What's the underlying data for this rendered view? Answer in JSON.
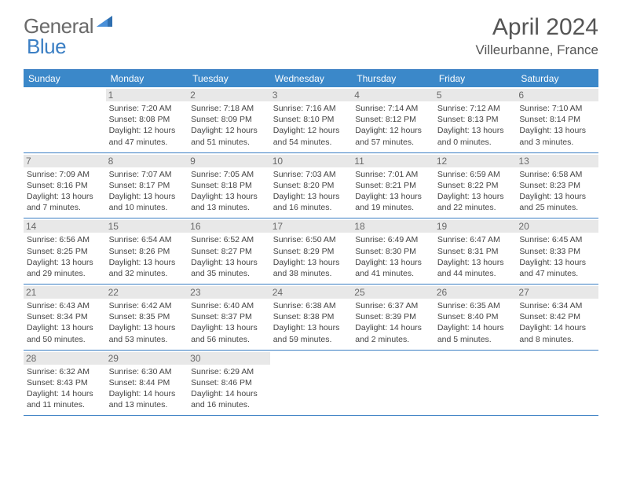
{
  "logo": {
    "part1": "General",
    "part2": "Blue"
  },
  "title": "April 2024",
  "location": "Villeurbanne, France",
  "colors": {
    "header_bg": "#3b88c9",
    "border": "#3b7fc4",
    "daynum_bg": "#e8e8e8",
    "text": "#444444",
    "logo_gray": "#6a6a6a",
    "logo_blue": "#3b7fc4"
  },
  "dow": [
    "Sunday",
    "Monday",
    "Tuesday",
    "Wednesday",
    "Thursday",
    "Friday",
    "Saturday"
  ],
  "weeks": [
    [
      {
        "n": "",
        "lines": []
      },
      {
        "n": "1",
        "lines": [
          "Sunrise: 7:20 AM",
          "Sunset: 8:08 PM",
          "Daylight: 12 hours",
          "and 47 minutes."
        ]
      },
      {
        "n": "2",
        "lines": [
          "Sunrise: 7:18 AM",
          "Sunset: 8:09 PM",
          "Daylight: 12 hours",
          "and 51 minutes."
        ]
      },
      {
        "n": "3",
        "lines": [
          "Sunrise: 7:16 AM",
          "Sunset: 8:10 PM",
          "Daylight: 12 hours",
          "and 54 minutes."
        ]
      },
      {
        "n": "4",
        "lines": [
          "Sunrise: 7:14 AM",
          "Sunset: 8:12 PM",
          "Daylight: 12 hours",
          "and 57 minutes."
        ]
      },
      {
        "n": "5",
        "lines": [
          "Sunrise: 7:12 AM",
          "Sunset: 8:13 PM",
          "Daylight: 13 hours",
          "and 0 minutes."
        ]
      },
      {
        "n": "6",
        "lines": [
          "Sunrise: 7:10 AM",
          "Sunset: 8:14 PM",
          "Daylight: 13 hours",
          "and 3 minutes."
        ]
      }
    ],
    [
      {
        "n": "7",
        "lines": [
          "Sunrise: 7:09 AM",
          "Sunset: 8:16 PM",
          "Daylight: 13 hours",
          "and 7 minutes."
        ]
      },
      {
        "n": "8",
        "lines": [
          "Sunrise: 7:07 AM",
          "Sunset: 8:17 PM",
          "Daylight: 13 hours",
          "and 10 minutes."
        ]
      },
      {
        "n": "9",
        "lines": [
          "Sunrise: 7:05 AM",
          "Sunset: 8:18 PM",
          "Daylight: 13 hours",
          "and 13 minutes."
        ]
      },
      {
        "n": "10",
        "lines": [
          "Sunrise: 7:03 AM",
          "Sunset: 8:20 PM",
          "Daylight: 13 hours",
          "and 16 minutes."
        ]
      },
      {
        "n": "11",
        "lines": [
          "Sunrise: 7:01 AM",
          "Sunset: 8:21 PM",
          "Daylight: 13 hours",
          "and 19 minutes."
        ]
      },
      {
        "n": "12",
        "lines": [
          "Sunrise: 6:59 AM",
          "Sunset: 8:22 PM",
          "Daylight: 13 hours",
          "and 22 minutes."
        ]
      },
      {
        "n": "13",
        "lines": [
          "Sunrise: 6:58 AM",
          "Sunset: 8:23 PM",
          "Daylight: 13 hours",
          "and 25 minutes."
        ]
      }
    ],
    [
      {
        "n": "14",
        "lines": [
          "Sunrise: 6:56 AM",
          "Sunset: 8:25 PM",
          "Daylight: 13 hours",
          "and 29 minutes."
        ]
      },
      {
        "n": "15",
        "lines": [
          "Sunrise: 6:54 AM",
          "Sunset: 8:26 PM",
          "Daylight: 13 hours",
          "and 32 minutes."
        ]
      },
      {
        "n": "16",
        "lines": [
          "Sunrise: 6:52 AM",
          "Sunset: 8:27 PM",
          "Daylight: 13 hours",
          "and 35 minutes."
        ]
      },
      {
        "n": "17",
        "lines": [
          "Sunrise: 6:50 AM",
          "Sunset: 8:29 PM",
          "Daylight: 13 hours",
          "and 38 minutes."
        ]
      },
      {
        "n": "18",
        "lines": [
          "Sunrise: 6:49 AM",
          "Sunset: 8:30 PM",
          "Daylight: 13 hours",
          "and 41 minutes."
        ]
      },
      {
        "n": "19",
        "lines": [
          "Sunrise: 6:47 AM",
          "Sunset: 8:31 PM",
          "Daylight: 13 hours",
          "and 44 minutes."
        ]
      },
      {
        "n": "20",
        "lines": [
          "Sunrise: 6:45 AM",
          "Sunset: 8:33 PM",
          "Daylight: 13 hours",
          "and 47 minutes."
        ]
      }
    ],
    [
      {
        "n": "21",
        "lines": [
          "Sunrise: 6:43 AM",
          "Sunset: 8:34 PM",
          "Daylight: 13 hours",
          "and 50 minutes."
        ]
      },
      {
        "n": "22",
        "lines": [
          "Sunrise: 6:42 AM",
          "Sunset: 8:35 PM",
          "Daylight: 13 hours",
          "and 53 minutes."
        ]
      },
      {
        "n": "23",
        "lines": [
          "Sunrise: 6:40 AM",
          "Sunset: 8:37 PM",
          "Daylight: 13 hours",
          "and 56 minutes."
        ]
      },
      {
        "n": "24",
        "lines": [
          "Sunrise: 6:38 AM",
          "Sunset: 8:38 PM",
          "Daylight: 13 hours",
          "and 59 minutes."
        ]
      },
      {
        "n": "25",
        "lines": [
          "Sunrise: 6:37 AM",
          "Sunset: 8:39 PM",
          "Daylight: 14 hours",
          "and 2 minutes."
        ]
      },
      {
        "n": "26",
        "lines": [
          "Sunrise: 6:35 AM",
          "Sunset: 8:40 PM",
          "Daylight: 14 hours",
          "and 5 minutes."
        ]
      },
      {
        "n": "27",
        "lines": [
          "Sunrise: 6:34 AM",
          "Sunset: 8:42 PM",
          "Daylight: 14 hours",
          "and 8 minutes."
        ]
      }
    ],
    [
      {
        "n": "28",
        "lines": [
          "Sunrise: 6:32 AM",
          "Sunset: 8:43 PM",
          "Daylight: 14 hours",
          "and 11 minutes."
        ]
      },
      {
        "n": "29",
        "lines": [
          "Sunrise: 6:30 AM",
          "Sunset: 8:44 PM",
          "Daylight: 14 hours",
          "and 13 minutes."
        ]
      },
      {
        "n": "30",
        "lines": [
          "Sunrise: 6:29 AM",
          "Sunset: 8:46 PM",
          "Daylight: 14 hours",
          "and 16 minutes."
        ]
      },
      {
        "n": "",
        "lines": []
      },
      {
        "n": "",
        "lines": []
      },
      {
        "n": "",
        "lines": []
      },
      {
        "n": "",
        "lines": []
      }
    ]
  ]
}
